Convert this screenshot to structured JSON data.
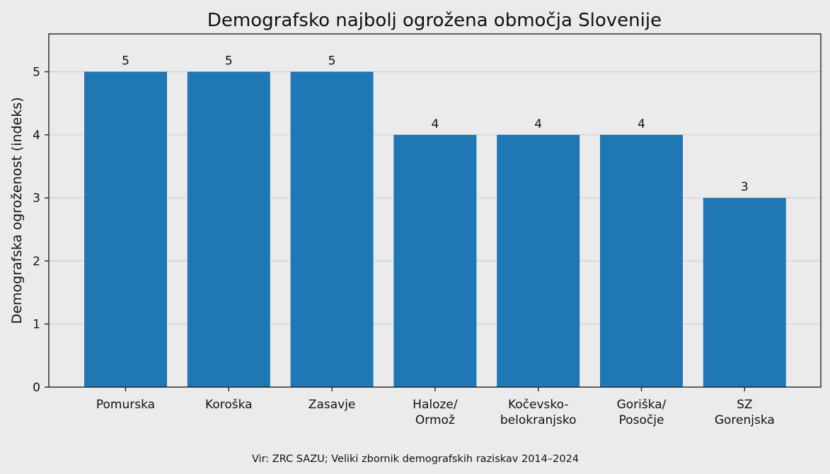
{
  "chart_data": {
    "type": "bar",
    "title": "Demografsko najbolj ogrožena območja Slovenije",
    "xlabel": "",
    "ylabel": "Demografska ogroženost (indeks)",
    "categories": [
      [
        "Pomurska"
      ],
      [
        "Koroška"
      ],
      [
        "Zasavje"
      ],
      [
        "Haloze/",
        "Ormož"
      ],
      [
        "Kočevsko-",
        "belokranjsko"
      ],
      [
        "Goriška/",
        "Posočje"
      ],
      [
        "SZ",
        "Gorenjska"
      ]
    ],
    "values": [
      5,
      5,
      5,
      4,
      4,
      4,
      3
    ],
    "data_labels": [
      "5",
      "5",
      "5",
      "4",
      "4",
      "4",
      "3"
    ],
    "yticks": [
      0,
      1,
      2,
      3,
      4,
      5
    ],
    "ylim": [
      0,
      5.6
    ],
    "grid": "horizontal",
    "bar_color": "#1f77b4",
    "background_color": "#ebebeb",
    "source": "Vir: ZRC SAZU; Veliki zbornik demografskih raziskav 2014–2024"
  }
}
